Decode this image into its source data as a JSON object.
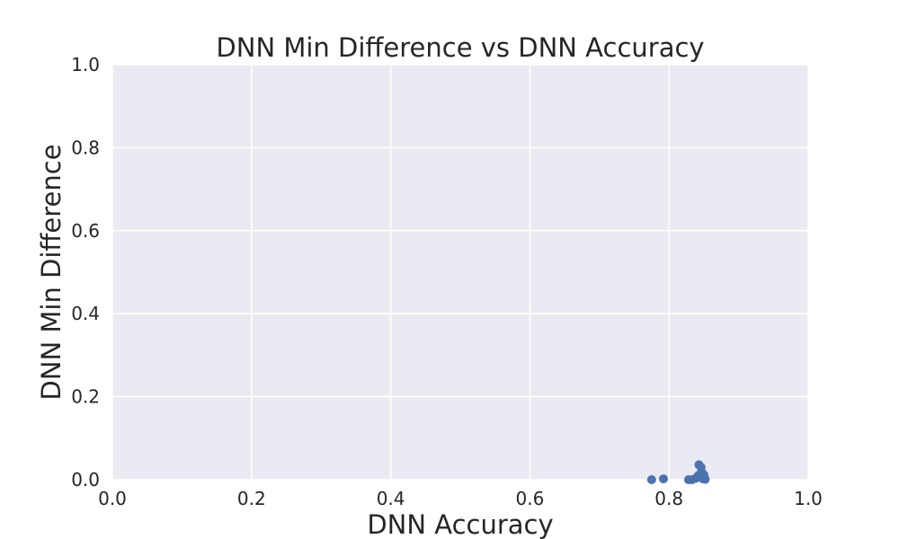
{
  "chart_data": {
    "type": "scatter",
    "title": "DNN Min Difference vs DNN Accuracy",
    "xlabel": "DNN Accuracy",
    "ylabel": "DNN Min Difference",
    "xlim": [
      0.0,
      1.0
    ],
    "ylim": [
      0.0,
      1.0
    ],
    "x_ticks": [
      "0.0",
      "0.2",
      "0.4",
      "0.6",
      "0.8",
      "1.0"
    ],
    "y_ticks": [
      "0.0",
      "0.2",
      "0.4",
      "0.6",
      "0.8",
      "1.0"
    ],
    "grid": true,
    "point_color": "#4c72b0",
    "background_color": "#eaeaf2",
    "points": [
      {
        "x": 0.775,
        "y": 0.0
      },
      {
        "x": 0.792,
        "y": 0.002
      },
      {
        "x": 0.828,
        "y": 0.0
      },
      {
        "x": 0.833,
        "y": 0.0
      },
      {
        "x": 0.838,
        "y": 0.003
      },
      {
        "x": 0.84,
        "y": 0.005
      },
      {
        "x": 0.842,
        "y": 0.01
      },
      {
        "x": 0.843,
        "y": 0.036
      },
      {
        "x": 0.845,
        "y": 0.014
      },
      {
        "x": 0.846,
        "y": 0.03
      },
      {
        "x": 0.847,
        "y": 0.018
      },
      {
        "x": 0.848,
        "y": 0.008
      },
      {
        "x": 0.849,
        "y": 0.002
      },
      {
        "x": 0.85,
        "y": 0.012
      },
      {
        "x": 0.851,
        "y": 0.004
      },
      {
        "x": 0.852,
        "y": 0.001
      }
    ]
  }
}
